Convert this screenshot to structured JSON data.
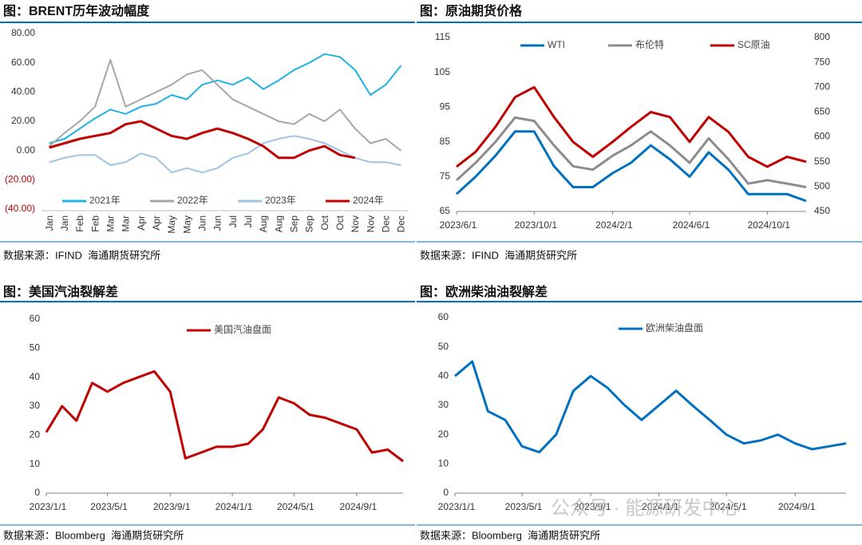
{
  "chart_data": [
    {
      "type": "line",
      "title": "图：BRENT历年波动幅度",
      "source": "数据来源：IFIND  海通期货研究所",
      "categories": [
        "Jan",
        "Jan",
        "Feb",
        "Feb",
        "Mar",
        "Mar",
        "Apr",
        "Apr",
        "May",
        "May",
        "Jun",
        "Jun",
        "Jul",
        "Jul",
        "Aug",
        "Aug",
        "Sep",
        "Sep",
        "Oct",
        "Oct",
        "Nov",
        "Nov",
        "Dec",
        "Dec"
      ],
      "ylim": [
        -40,
        80
      ],
      "yticks": [
        {
          "value": -40,
          "label": "(40.00)"
        },
        {
          "value": -20,
          "label": "(20.00)"
        },
        {
          "value": 0,
          "label": "0.00"
        },
        {
          "value": 20,
          "label": "20.00"
        },
        {
          "value": 40,
          "label": "40.00"
        },
        {
          "value": 60,
          "label": "60.00"
        },
        {
          "value": 80,
          "label": "80.00"
        }
      ],
      "negative_tick_label_color": "#c00000",
      "series": [
        {
          "name": "2021年",
          "color": "#1fb1e6",
          "values": [
            5,
            8,
            15,
            22,
            28,
            25,
            30,
            32,
            38,
            35,
            45,
            48,
            45,
            50,
            42,
            48,
            55,
            60,
            66,
            64,
            55,
            38,
            45,
            58
          ]
        },
        {
          "name": "2022年",
          "color": "#a6a6a6",
          "values": [
            3,
            12,
            20,
            30,
            62,
            30,
            35,
            40,
            45,
            52,
            55,
            45,
            35,
            30,
            25,
            20,
            18,
            25,
            20,
            28,
            15,
            5,
            8,
            0
          ]
        },
        {
          "name": "2023年",
          "color": "#9dc3e6",
          "values": [
            -8,
            -5,
            -3,
            -3,
            -10,
            -8,
            -2,
            -5,
            -15,
            -12,
            -15,
            -12,
            -5,
            -2,
            5,
            8,
            10,
            8,
            5,
            0,
            -5,
            -8,
            -8,
            -10
          ]
        },
        {
          "name": "2024年",
          "color": "#c00000",
          "values": [
            2,
            5,
            8,
            10,
            12,
            18,
            20,
            15,
            10,
            8,
            12,
            15,
            12,
            8,
            3,
            -5,
            -5,
            0,
            3,
            -3,
            -5,
            null,
            null,
            null
          ]
        }
      ]
    },
    {
      "type": "line",
      "title": "图：原油期货价格",
      "source": "数据来源：IFIND  海通期货研究所",
      "x": [
        "2023/6/1",
        "2023/7/1",
        "2023/8/1",
        "2023/9/1",
        "2023/10/1",
        "2023/11/1",
        "2023/12/1",
        "2024/1/1",
        "2024/2/1",
        "2024/3/1",
        "2024/4/1",
        "2024/5/1",
        "2024/6/1",
        "2024/7/1",
        "2024/8/1",
        "2024/9/1",
        "2024/10/1",
        "2024/11/1",
        "2024/12/1"
      ],
      "xlim": [
        "2023/6/1",
        "2024/12/1"
      ],
      "xticks": [
        "2023/6/1",
        "2023/10/1",
        "2024/2/1",
        "2024/6/1",
        "2024/10/1"
      ],
      "ylim": [
        65,
        115
      ],
      "yticks": [
        65,
        75,
        85,
        95,
        105,
        115
      ],
      "y2lim": [
        450,
        800
      ],
      "y2ticks": [
        450,
        500,
        550,
        600,
        650,
        700,
        750,
        800
      ],
      "series": [
        {
          "name": "WTI",
          "color": "#0070c0",
          "values": [
            70,
            75,
            81,
            88,
            88,
            78,
            72,
            72,
            76,
            79,
            84,
            80,
            75,
            82,
            77,
            70,
            70,
            70,
            68
          ]
        },
        {
          "name": "布伦特",
          "color": "#8c8c8c",
          "values": [
            74,
            79,
            85,
            92,
            91,
            84,
            78,
            77,
            81,
            84,
            88,
            84,
            79,
            86,
            80,
            73,
            74,
            73,
            72
          ]
        },
        {
          "name": "SC原油",
          "color": "#c00000",
          "axis": "y2",
          "values": [
            540,
            570,
            620,
            680,
            700,
            640,
            590,
            560,
            590,
            620,
            650,
            640,
            590,
            640,
            610,
            560,
            540,
            560,
            550
          ]
        }
      ]
    },
    {
      "type": "line",
      "title": "图：美国汽油裂解差",
      "source": "数据来源：Bloomberg  海通期货研究所",
      "x": [
        "2023/1/1",
        "2023/2/1",
        "2023/3/1",
        "2023/4/1",
        "2023/5/1",
        "2023/6/1",
        "2023/7/1",
        "2023/8/1",
        "2023/9/1",
        "2023/10/1",
        "2023/11/1",
        "2023/12/1",
        "2024/1/1",
        "2024/2/1",
        "2024/3/1",
        "2024/4/1",
        "2024/5/1",
        "2024/6/1",
        "2024/7/1",
        "2024/8/1",
        "2024/9/1",
        "2024/10/1",
        "2024/11/1",
        "2024/12/1"
      ],
      "xlim": [
        "2023/1/1",
        "2024/12/1"
      ],
      "xticks": [
        "2023/1/1",
        "2023/5/1",
        "2023/9/1",
        "2024/1/1",
        "2024/5/1",
        "2024/9/1"
      ],
      "ylim": [
        0,
        60
      ],
      "yticks": [
        0,
        10,
        20,
        30,
        40,
        50,
        60
      ],
      "series": [
        {
          "name": "美国汽油盘面",
          "color": "#c00000",
          "values": [
            21,
            30,
            25,
            38,
            35,
            38,
            40,
            42,
            35,
            12,
            14,
            16,
            16,
            17,
            22,
            33,
            31,
            27,
            26,
            24,
            22,
            14,
            15,
            11
          ]
        }
      ]
    },
    {
      "type": "line",
      "title": "图：欧洲柴油油裂解差",
      "source": "数据来源：Bloomberg  海通期货研究所",
      "watermark": "公众号 · 能源研发中心",
      "x": [
        "2023/1/1",
        "2023/2/1",
        "2023/3/1",
        "2023/4/1",
        "2023/5/1",
        "2023/6/1",
        "2023/7/1",
        "2023/8/1",
        "2023/9/1",
        "2023/10/1",
        "2023/11/1",
        "2023/12/1",
        "2024/1/1",
        "2024/2/1",
        "2024/3/1",
        "2024/4/1",
        "2024/5/1",
        "2024/6/1",
        "2024/7/1",
        "2024/8/1",
        "2024/9/1",
        "2024/10/1",
        "2024/11/1",
        "2024/12/1"
      ],
      "xlim": [
        "2023/1/1",
        "2024/12/1"
      ],
      "xticks": [
        "2023/1/1",
        "2023/5/1",
        "2023/9/1",
        "2024/1/1",
        "2024/5/1",
        "2024/9/1"
      ],
      "ylim": [
        0,
        60
      ],
      "yticks": [
        0,
        10,
        20,
        30,
        40,
        50,
        60
      ],
      "series": [
        {
          "name": "欧洲柴油盘面",
          "color": "#0070c0",
          "values": [
            40,
            45,
            28,
            25,
            16,
            14,
            20,
            35,
            40,
            36,
            30,
            25,
            30,
            35,
            30,
            25,
            20,
            17,
            18,
            20,
            17,
            15,
            16,
            17
          ]
        }
      ]
    }
  ]
}
